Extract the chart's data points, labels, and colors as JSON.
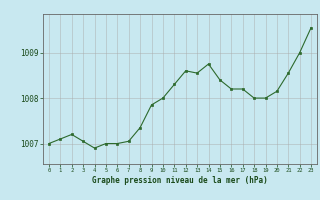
{
  "x": [
    0,
    1,
    2,
    3,
    4,
    5,
    6,
    7,
    8,
    9,
    10,
    11,
    12,
    13,
    14,
    15,
    16,
    17,
    18,
    19,
    20,
    21,
    22,
    23
  ],
  "y": [
    1007.0,
    1007.1,
    1007.2,
    1007.05,
    1006.9,
    1007.0,
    1007.0,
    1007.05,
    1007.35,
    1007.85,
    1008.0,
    1008.3,
    1008.6,
    1008.55,
    1008.75,
    1008.4,
    1008.2,
    1008.2,
    1008.0,
    1008.0,
    1008.15,
    1008.55,
    1009.0,
    1009.55
  ],
  "line_color": "#2d6a2d",
  "marker_color": "#2d6a2d",
  "bg_color": "#c8e8f0",
  "plot_bg": "#c8e8f0",
  "grid_color": "#aaaaaa",
  "xlabel": "Graphe pression niveau de la mer (hPa)",
  "xlabel_color": "#1a4a1a",
  "ylabel_ticks": [
    1007,
    1008,
    1009
  ],
  "ylim": [
    1006.55,
    1009.85
  ],
  "xlim": [
    -0.5,
    23.5
  ],
  "tick_label_color": "#1a4a1a"
}
